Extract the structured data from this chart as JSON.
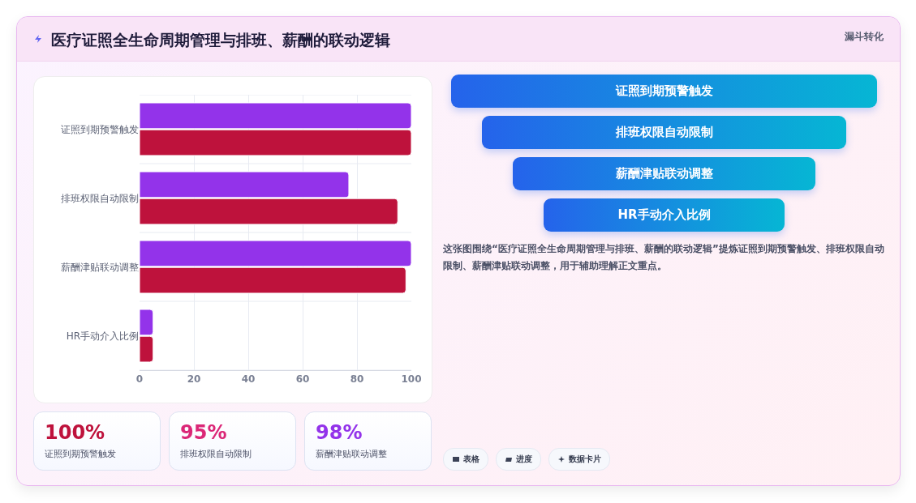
{
  "chart_data": [
    {
      "type": "bar",
      "title": "医疗证照全生命周期管理与排班、薪酬的联动逻辑",
      "orientation": "horizontal",
      "categories": [
        "证照到期预警触发",
        "排班权限自动限制",
        "薪酬津贴联动调整",
        "HR手动介入比例"
      ],
      "series": [
        {
          "color": "#9333ea",
          "values": [
            100,
            77,
            100,
            5
          ]
        },
        {
          "color": "#be123c",
          "values": [
            100,
            95,
            98,
            5
          ]
        }
      ],
      "xlim": [
        0,
        100
      ],
      "xticks": [
        0,
        20,
        40,
        60,
        80,
        100
      ],
      "grid": true
    },
    {
      "type": "other",
      "title": "漏斗转化",
      "categories": [
        "证照到期预警触发",
        "排班权限自动限制",
        "薪酬津贴联动调整",
        "HR手动介入比例"
      ],
      "annotations": [
        "这张图围绕“医疗证照全生命周期管理与排班、薪酬的联动逻辑”提炼证照到期预警触发、排班权限自动限制、薪酬津贴联动调整，用于辅助理解正文重点。",
        "表格",
        "进度",
        "数据卡片"
      ]
    },
    {
      "type": "other",
      "categories": [
        "证照到期预警触发",
        "排班权限自动限制",
        "薪酬津贴联动调整"
      ],
      "value_labels": [
        "100%",
        "95%",
        "98%"
      ]
    }
  ]
}
